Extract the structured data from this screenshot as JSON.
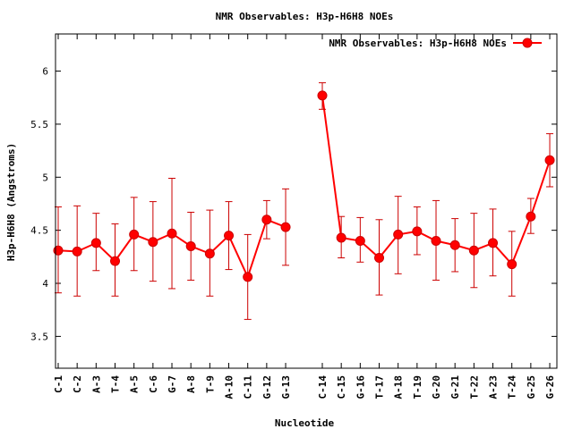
{
  "chart_data": {
    "type": "line",
    "title": "NMR Observables: H3p-H6H8 NOEs",
    "xlabel": "Nucleotide",
    "ylabel": "H3p-H6H8 (Angstroms)",
    "ylim": [
      3.2,
      6.35
    ],
    "yticks": [
      "3.5",
      "4",
      "4.5",
      "5",
      "5.5",
      "6"
    ],
    "grid": false,
    "legend_position": "top-right",
    "colors": {
      "series": "#ff0000",
      "errorbar": "#cc0000",
      "axis": "#000000"
    },
    "categories": [
      "C-1",
      "C-2",
      "A-3",
      "T-4",
      "A-5",
      "C-6",
      "G-7",
      "A-8",
      "T-9",
      "A-10",
      "C-11",
      "G-12",
      "G-13",
      "C-14",
      "C-15",
      "G-16",
      "T-17",
      "A-18",
      "T-19",
      "G-20",
      "G-21",
      "T-22",
      "A-23",
      "T-24",
      "G-25",
      "G-26"
    ],
    "series": [
      {
        "name": "NMR Observables: H3p-H6H8 NOEs",
        "segments": [
          {
            "start": 0,
            "values": [
              4.31,
              4.3,
              4.38,
              4.21,
              4.46,
              4.39,
              4.47,
              4.35,
              4.28,
              4.45,
              4.06,
              4.6,
              4.53
            ],
            "error_low": [
              3.91,
              3.88,
              4.12,
              3.88,
              4.12,
              4.02,
              3.95,
              4.03,
              3.88,
              4.13,
              3.66,
              4.42,
              4.17
            ],
            "error_high": [
              4.72,
              4.73,
              4.66,
              4.56,
              4.81,
              4.77,
              4.99,
              4.67,
              4.69,
              4.77,
              4.46,
              4.78,
              4.89
            ]
          },
          {
            "start": 13,
            "values": [
              5.77,
              4.43,
              4.4,
              4.24,
              4.46,
              4.49,
              4.4,
              4.36,
              4.31,
              4.38,
              4.18,
              4.63,
              5.16
            ],
            "error_low": [
              5.64,
              4.24,
              4.2,
              3.89,
              4.09,
              4.27,
              4.03,
              4.11,
              3.96,
              4.07,
              3.88,
              4.47,
              4.91
            ],
            "error_high": [
              5.89,
              4.63,
              4.62,
              4.6,
              4.82,
              4.72,
              4.78,
              4.61,
              4.66,
              4.7,
              4.49,
              4.8,
              5.41
            ]
          }
        ]
      }
    ]
  }
}
